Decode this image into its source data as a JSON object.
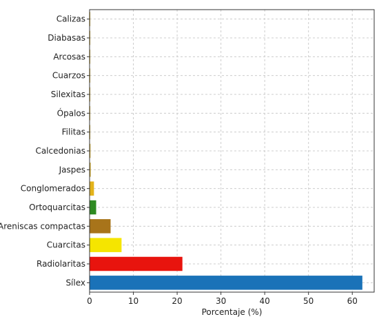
{
  "chart_data": {
    "type": "bar",
    "orientation": "horizontal",
    "categories": [
      "Calizas",
      "Diabasas",
      "Arcosas",
      "Cuarzos",
      "Silexitas",
      "Ópalos",
      "Filitas",
      "Calcedonias",
      "Jaspes",
      "Conglomerados",
      "Ortoquarcitas",
      "Areniscas compactas",
      "Cuarcitas",
      "Radiolaritas",
      "Sílex"
    ],
    "values": [
      0.05,
      0.05,
      0.05,
      0.1,
      0.1,
      0.1,
      0.15,
      0.2,
      0.25,
      1.0,
      1.5,
      4.8,
      7.3,
      21.2,
      62.3
    ],
    "colors": [
      "#c8a020",
      "#c8a020",
      "#c8a020",
      "#c8a020",
      "#c8a020",
      "#c8a020",
      "#c8a020",
      "#c8a020",
      "#c8a020",
      "#e3b31a",
      "#2e8b22",
      "#a8741a",
      "#f5e500",
      "#e8140e",
      "#1a72b8"
    ],
    "xlabel": "Porcentaje (%)",
    "ylabel": "",
    "title": "",
    "xlim": [
      0,
      65
    ],
    "xticks": [
      0,
      10,
      20,
      30,
      40,
      50,
      60
    ],
    "grid": true
  }
}
